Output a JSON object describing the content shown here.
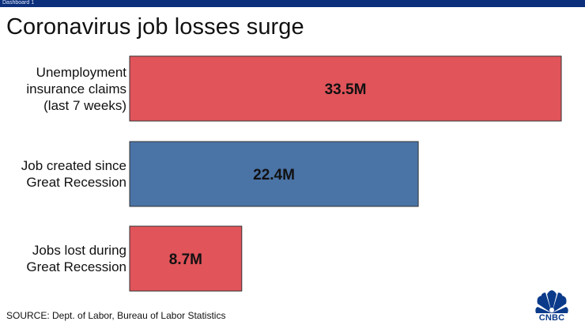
{
  "window": {
    "title": "Dashboard 1"
  },
  "colors": {
    "bar_red": "#e0545a",
    "bar_blue": "#4a73a6",
    "topbar": "#0b2f7a",
    "logo": "#0b3a8a"
  },
  "logo": {
    "text": "CNBC",
    "icon": "peacock-logo-icon"
  },
  "source": "SOURCE: Dept. of Labor, Bureau of Labor Statistics",
  "chart_data": {
    "type": "bar",
    "orientation": "horizontal",
    "title": "Coronavirus job losses surge",
    "categories": [
      "Unemployment insurance claims (last 7 weeks)",
      "Job created since Great Recession",
      "Jobs lost during Great Recession"
    ],
    "category_lines": [
      [
        "Unemployment",
        "insurance claims",
        "(last 7 weeks)"
      ],
      [
        "Job created since",
        "Great Recession"
      ],
      [
        "Jobs lost during",
        "Great Recession"
      ]
    ],
    "values": [
      33.5,
      22.4,
      8.7
    ],
    "value_labels": [
      "33.5M",
      "22.4M",
      "8.7M"
    ],
    "colors": [
      "#e0545a",
      "#4a73a6",
      "#e0545a"
    ],
    "xlim": [
      0,
      33.5
    ],
    "grid": false,
    "legend": "none"
  }
}
